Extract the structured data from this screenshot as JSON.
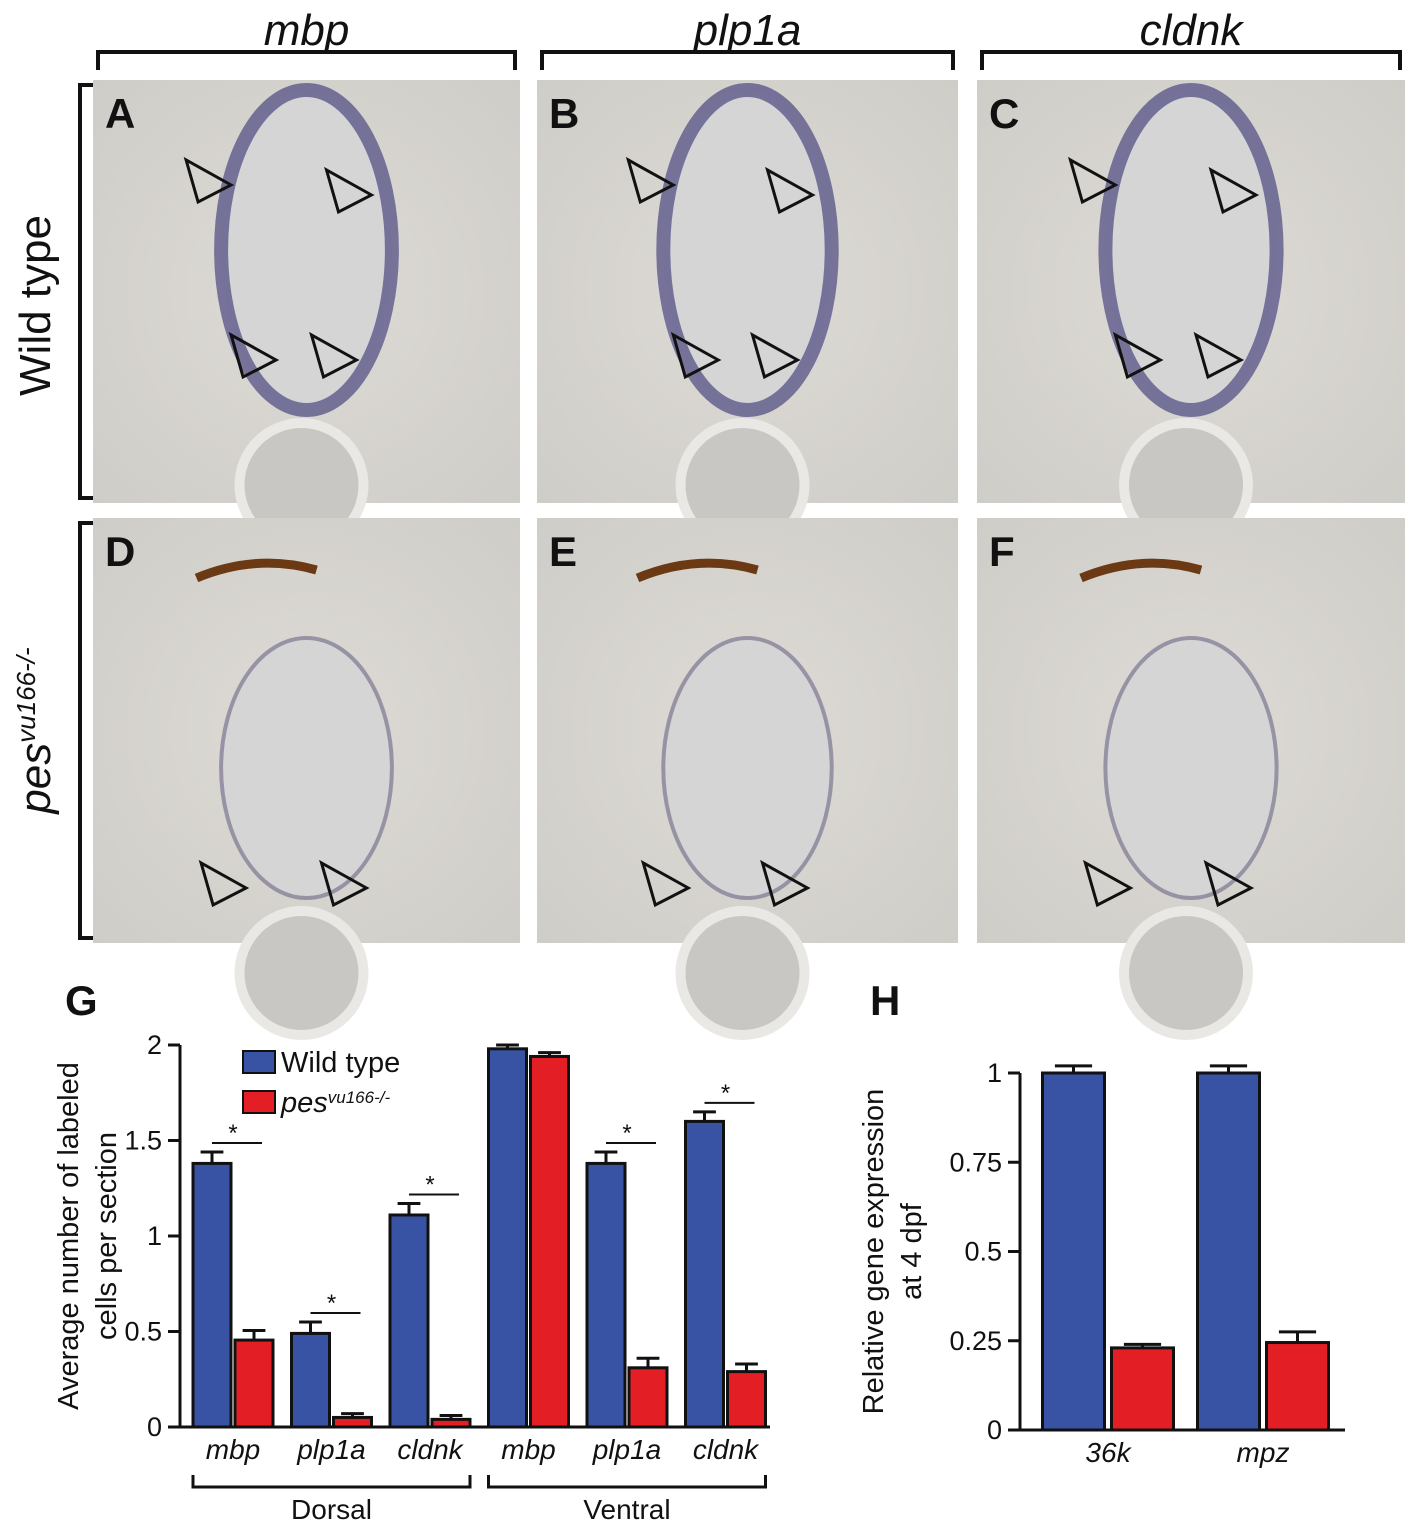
{
  "panels": {
    "columns": [
      "mbp",
      "plp1a",
      "cldnk"
    ],
    "rows": [
      {
        "label": "Wild type"
      },
      {
        "label": "pes",
        "superscript": "vu166-/-"
      }
    ],
    "letters": [
      "A",
      "B",
      "C",
      "D",
      "E",
      "F"
    ]
  },
  "chart_data": [
    {
      "type": "bar",
      "panel_label": "G",
      "ylabel": [
        "Average number of labeled",
        "cells per section"
      ],
      "groups": [
        {
          "name": "Dorsal",
          "categories": [
            "mbp",
            "plp1a",
            "cldnk"
          ]
        },
        {
          "name": "Ventral",
          "categories": [
            "mbp",
            "plp1a",
            "cldnk"
          ]
        }
      ],
      "series": [
        {
          "name": "Wild type",
          "color": "#3953a4",
          "values": [
            1.38,
            0.49,
            1.11,
            1.98,
            1.38,
            1.6
          ],
          "errors": [
            0.06,
            0.06,
            0.06,
            0.02,
            0.06,
            0.05
          ]
        },
        {
          "name": "pes",
          "superscript": "vu166-/-",
          "color": "#e31e24",
          "values": [
            0.455,
            0.05,
            0.04,
            1.94,
            0.31,
            0.29
          ],
          "errors": [
            0.05,
            0.02,
            0.02,
            0.02,
            0.05,
            0.04
          ]
        }
      ],
      "significance": [
        "*",
        "*",
        "*",
        null,
        "*",
        "*"
      ],
      "ylim": [
        0,
        2
      ],
      "yticks": [
        0,
        0.5,
        1,
        1.5,
        2
      ],
      "legend": "top-left"
    },
    {
      "type": "bar",
      "panel_label": "H",
      "ylabel": [
        "Relative gene expression",
        "at 4 dpf"
      ],
      "categories": [
        "36k",
        "mpz"
      ],
      "series": [
        {
          "color": "#3953a4",
          "values": [
            1.0,
            1.0
          ],
          "errors": [
            0.02,
            0.02
          ]
        },
        {
          "color": "#e31e24",
          "values": [
            0.23,
            0.245
          ],
          "errors": [
            0.01,
            0.03
          ]
        }
      ],
      "ylim": [
        0,
        1
      ],
      "yticks": [
        0,
        0.25,
        0.5,
        0.75,
        1
      ]
    }
  ]
}
